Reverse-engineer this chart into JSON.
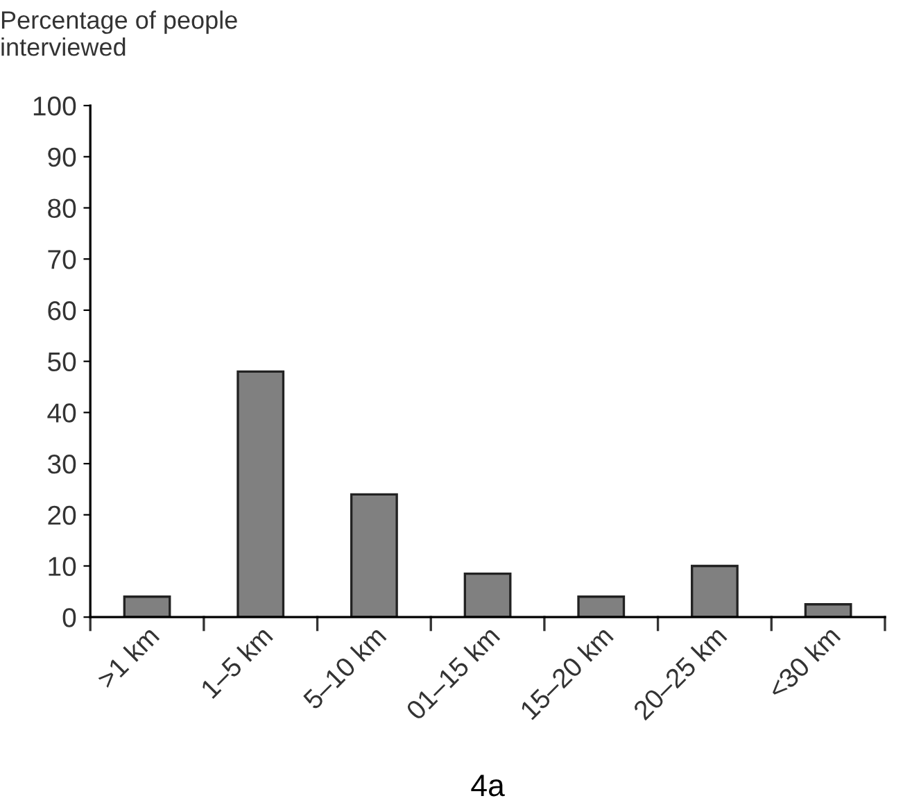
{
  "chart_data": {
    "type": "bar",
    "ylabel": "Percentage of people\ninterviewed",
    "xlabel": "4a",
    "categories": [
      ">1 km",
      "1–5 km",
      "5–10 km",
      "01–15 km",
      "15–20 km",
      "20–25 km",
      "<30 km"
    ],
    "values": [
      4,
      48,
      24,
      8.5,
      4,
      10,
      2.5
    ],
    "color": "#808080",
    "ylim": [
      0,
      100
    ],
    "yticks": [
      0,
      10,
      20,
      30,
      40,
      50,
      60,
      70,
      80,
      90,
      100
    ],
    "grid": false,
    "legend": false
  }
}
